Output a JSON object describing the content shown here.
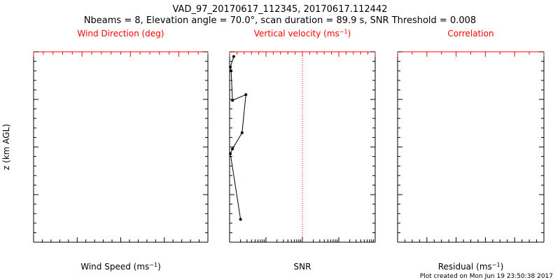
{
  "title_line1": "VAD_97_20170617_112345, 20170617.112442",
  "title_line2": "Nbeams = 8, Elevation angle = 70.0°, scan duration = 89.9 s, SNR Threshold = 0.008",
  "footer": "Plot created on Mon Jun 19 23:50:38 2017",
  "colors": {
    "axis": "#000000",
    "accent": "#ff0000"
  },
  "ylabel": "z (km AGL)",
  "chart_data": [
    {
      "type": "scatter",
      "panel": "wind",
      "xlabel": "Wind Speed (ms-1)",
      "xlim": [
        0,
        20
      ],
      "xticks": [
        "0",
        "5",
        "10",
        "15",
        "20"
      ],
      "top_label": "Wind Direction (deg)",
      "top_xlim": [
        0,
        360
      ],
      "top_ticks": [
        "0",
        "100",
        "200",
        "300"
      ],
      "top_tick_values": [
        0,
        100,
        200,
        300
      ],
      "ylim": [
        0,
        2.0
      ],
      "yticks": [
        "0.0",
        "0.5",
        "1.0",
        "1.5",
        "2.0"
      ],
      "points": []
    },
    {
      "type": "line",
      "panel": "snr",
      "xlabel": "SNR",
      "xscale": "log",
      "xlim": [
        0.001,
        10
      ],
      "xticks": [
        "0.001",
        "0.010",
        "0.100",
        "1.000",
        "10.000"
      ],
      "top_label": "Vertical velocity (ms-1)",
      "top_xlim": [
        -10,
        10
      ],
      "top_ticks": [
        "-10",
        "-5",
        "0",
        "5",
        "10"
      ],
      "reference_line_top_value": 0,
      "ylim": [
        0,
        2.0
      ],
      "series": [
        {
          "x": [
            0.0013,
            0.00105,
            0.0011,
            0.0012,
            0.0028,
            0.0022,
            0.0012,
            0.00105,
            0.002
          ],
          "y": [
            1.95,
            1.84,
            1.8,
            1.49,
            1.55,
            1.15,
            0.98,
            0.93,
            0.24
          ]
        }
      ]
    },
    {
      "type": "scatter",
      "panel": "residual",
      "xlabel": "Residual (ms-1)",
      "xlim": [
        0,
        10
      ],
      "xticks": [
        "0",
        "2",
        "4",
        "6",
        "8",
        "10"
      ],
      "top_label": "Correlation",
      "top_xlim": [
        0,
        1
      ],
      "top_ticks": [
        "0.0",
        "0.2",
        "0.4",
        "0.6",
        "0.8",
        "1.0"
      ],
      "ylim": [
        0,
        2.0
      ],
      "points": []
    }
  ]
}
